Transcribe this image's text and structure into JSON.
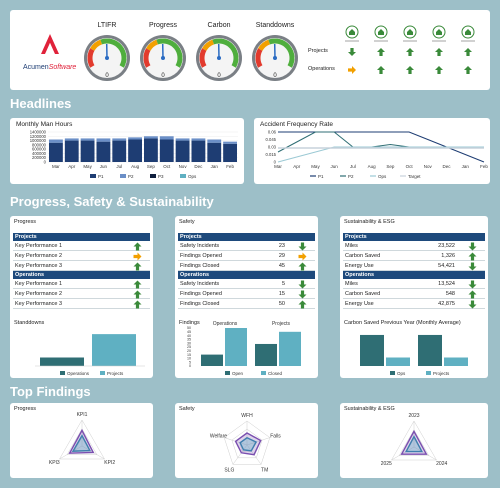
{
  "brand": {
    "name_prefix": "Acumen",
    "name_suffix": "Software"
  },
  "gauges": [
    {
      "label": "LTIFR",
      "value": 0
    },
    {
      "label": "Progress",
      "value": 0
    },
    {
      "label": "Carbon",
      "value": 0
    },
    {
      "label": "Standdowns",
      "value": 0
    }
  ],
  "status_panel": {
    "row_labels": [
      "Projects",
      "Operations"
    ],
    "icons": [
      "shield-icon",
      "worker-icon",
      "person-icon",
      "building-icon",
      "leaf-shield-icon"
    ],
    "projects_arrows": [
      "down",
      "up",
      "up",
      "up",
      "up"
    ],
    "operations_arrows": [
      "right",
      "up",
      "up",
      "up",
      "up"
    ]
  },
  "headlines_title": "Headlines",
  "man_hours": {
    "title": "Monthly Man Hours",
    "chart_data": {
      "type": "bar",
      "categories": [
        "Mar",
        "Apr",
        "May",
        "Jun",
        "Jul",
        "Aug",
        "Sep",
        "Oct",
        "Nov",
        "Dec",
        "Jan",
        "Feb"
      ],
      "series": [
        {
          "name": "P1",
          "values": [
            900000,
            1000000,
            1000000,
            950000,
            1000000,
            1050000,
            1100000,
            1050000,
            1000000,
            1000000,
            900000,
            850000
          ]
        },
        {
          "name": "P2",
          "values": [
            150000,
            100000,
            100000,
            150000,
            100000,
            100000,
            100000,
            150000,
            100000,
            100000,
            150000,
            100000
          ]
        },
        {
          "name": "P3",
          "values": [
            0,
            0,
            0,
            0,
            0,
            0,
            0,
            0,
            0,
            0,
            0,
            0
          ]
        },
        {
          "name": "Ops",
          "values": [
            0,
            0,
            0,
            0,
            0,
            0,
            0,
            0,
            0,
            0,
            0,
            0
          ]
        }
      ],
      "yticks": [
        "1400000",
        "1200000",
        "1000000",
        "800000",
        "600000",
        "400000",
        "200000",
        "0"
      ],
      "ylim": [
        0,
        1400000
      ]
    }
  },
  "afr": {
    "title": "Accident Frequency Rate",
    "chart_data": {
      "type": "line",
      "categories": [
        "Mar",
        "Apr",
        "May",
        "Jun",
        "Jul",
        "Aug",
        "Sep",
        "Oct",
        "Nov",
        "Dec",
        "Jan",
        "Feb"
      ],
      "series": [
        {
          "name": "P1",
          "values": [
            0.06,
            0.06,
            0.06,
            0.06,
            0.06,
            0.06,
            0.06,
            0.06,
            0.045,
            0.03,
            0.015,
            0.0
          ]
        },
        {
          "name": "P2",
          "values": [
            0.02,
            0.04,
            0.06,
            0.06,
            0.03,
            0.03,
            0.035,
            0.03,
            0.03,
            0.03,
            0.03,
            0.03
          ]
        },
        {
          "name": "Ops",
          "values": [
            0.0,
            0.01,
            0.02,
            0.03,
            0.03,
            0.03,
            0.03,
            0.03,
            0.03,
            0.03,
            0.03,
            0.03
          ]
        },
        {
          "name": "Target",
          "values": [
            0.028,
            0.028,
            0.028,
            0.028,
            0.028,
            0.028,
            0.028,
            0.028,
            0.028,
            0.028,
            0.028,
            0.028
          ]
        }
      ],
      "yticks": [
        "0.06",
        "0.045",
        "0.03",
        "0.015",
        "0"
      ],
      "ylim": [
        0,
        0.06
      ]
    }
  },
  "pss_title": "Progress, Safety & Sustainability",
  "progress_table": {
    "title": "Progress",
    "projects_label": "Projects",
    "operations_label": "Operations",
    "projects_rows": [
      {
        "label": "Key Performance 1",
        "arrow": "up"
      },
      {
        "label": "Key Performance 2",
        "arrow": "right"
      },
      {
        "label": "Key Performance 3",
        "arrow": "up"
      }
    ],
    "operations_rows": [
      {
        "label": "Key Performance 1",
        "arrow": "up"
      },
      {
        "label": "Key Performance 2",
        "arrow": "up"
      },
      {
        "label": "Key Performance 3",
        "arrow": "up"
      }
    ]
  },
  "safety_table": {
    "title": "Safety",
    "projects_label": "Projects",
    "operations_label": "Operations",
    "projects_rows": [
      {
        "label": "Safety Incidents",
        "value": "23",
        "arrow": "down"
      },
      {
        "label": "Findings Opened",
        "value": "29",
        "arrow": "right"
      },
      {
        "label": "Findings Closed",
        "value": "45",
        "arrow": "up"
      }
    ],
    "operations_rows": [
      {
        "label": "Safety Incidents",
        "value": "5",
        "arrow": "down"
      },
      {
        "label": "Findings Opened",
        "value": "15",
        "arrow": "down"
      },
      {
        "label": "Findings Closed",
        "value": "50",
        "arrow": "up"
      }
    ]
  },
  "esg_table": {
    "title": "Sustainability & ESG",
    "projects_label": "Projects",
    "operations_label": "Operations",
    "projects_rows": [
      {
        "label": "Miles",
        "value": "23,522",
        "arrow": "down"
      },
      {
        "label": "Carbon Saved",
        "value": "1,326",
        "arrow": "up"
      },
      {
        "label": "Energy Use",
        "value": "54,421",
        "arrow": "down"
      }
    ],
    "operations_rows": [
      {
        "label": "Miles",
        "value": "13,524",
        "arrow": "down"
      },
      {
        "label": "Carbon Saved",
        "value": "548",
        "arrow": "up"
      },
      {
        "label": "Energy Use",
        "value": "42,875",
        "arrow": "down"
      }
    ]
  },
  "standdowns_chart": {
    "title": "Standdowns",
    "chart_data": {
      "type": "bar",
      "categories": [
        "Operations",
        "Projects"
      ],
      "values": [
        8,
        30
      ],
      "ylim": [
        0,
        32
      ]
    }
  },
  "findings_chart": {
    "title": "Findings",
    "chart_data": {
      "type": "bar",
      "groups": [
        "Operations",
        "Projects"
      ],
      "series": [
        {
          "name": "Open",
          "values": [
            15,
            29
          ]
        },
        {
          "name": "Closed",
          "values": [
            50,
            45
          ]
        }
      ],
      "yticks": [
        "50",
        "45",
        "40",
        "35",
        "30",
        "25",
        "20",
        "15",
        "10",
        "5",
        "0"
      ],
      "ylim": [
        0,
        50
      ]
    }
  },
  "carbon_chart": {
    "title": "Carbon Saved Previous Year (Monthly Average)",
    "chart_data": {
      "type": "bar",
      "groups": [
        "",
        ""
      ],
      "series": [
        {
          "name": "Ops",
          "values": [
            548,
            548
          ]
        },
        {
          "name": "Projects",
          "values": [
            150,
            150
          ]
        }
      ],
      "ylim": [
        0,
        600
      ]
    }
  },
  "top_findings_title": "Top Findings",
  "radar_progress": {
    "title": "Progress",
    "chart_data": {
      "type": "radar",
      "axes": [
        "KPI1",
        "KPI2",
        "KPI3"
      ],
      "series": [
        {
          "values": [
            0.6,
            0.5,
            0.55
          ]
        },
        {
          "values": [
            0.4,
            0.35,
            0.4
          ]
        }
      ],
      "rmax": 1
    }
  },
  "radar_safety": {
    "title": "Safety",
    "chart_data": {
      "type": "radar",
      "axes": [
        "WFH",
        "Falls",
        "TM",
        "SLG",
        "Welfare"
      ],
      "series": [
        {
          "values": [
            0.5,
            0.6,
            0.5,
            0.4,
            0.5
          ]
        },
        {
          "values": [
            0.3,
            0.4,
            0.3,
            0.25,
            0.3
          ]
        }
      ],
      "rmax": 1
    }
  },
  "radar_esg": {
    "title": "Sustainability & ESG",
    "chart_data": {
      "type": "radar",
      "axes": [
        "2023",
        "2024",
        "2025"
      ],
      "series": [
        {
          "values": [
            0.6,
            0.55,
            0.55
          ]
        },
        {
          "values": [
            0.4,
            0.35,
            0.35
          ]
        }
      ],
      "rmax": 1
    }
  },
  "colors": {
    "navy": "#1e3d73",
    "teal": "#2f6e74",
    "light": "#5fb0c2",
    "green": "#3a8a3a",
    "orange": "#f2a000",
    "purple": "#7a4fb0"
  }
}
